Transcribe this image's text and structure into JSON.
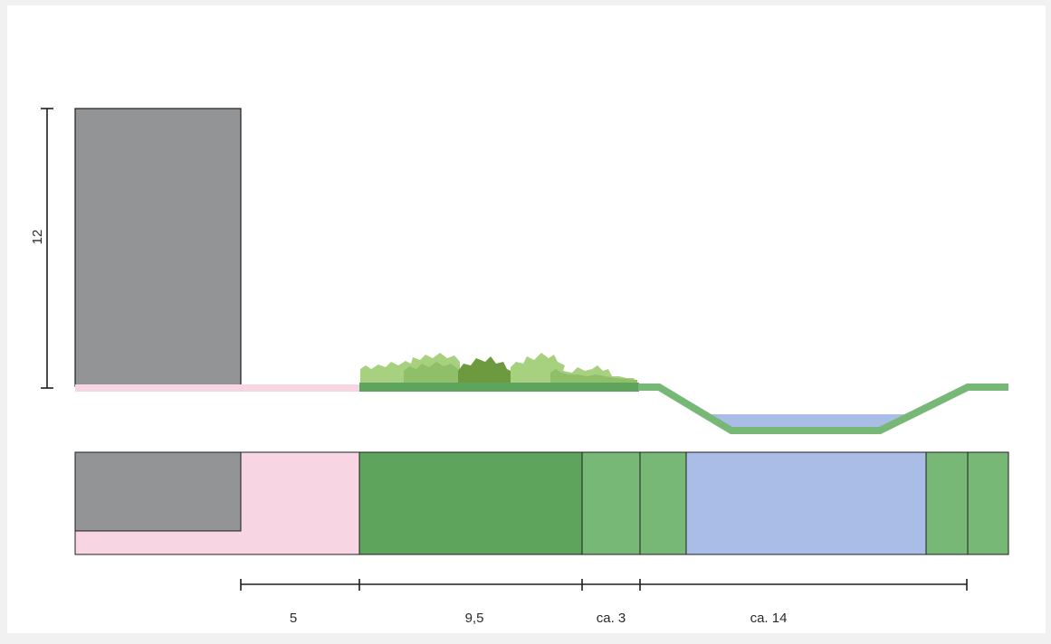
{
  "dimensions": {
    "height": "12",
    "widths": [
      "5",
      "9,5",
      "ca. 3",
      "ca. 14"
    ]
  },
  "colors": {
    "building": "#939496",
    "pavement": "#f7d5e3",
    "meadow_dark": "#5ea45c",
    "meadow_light": "#78b877",
    "water": "#a9bde6",
    "shrub_light": "#a7d07f",
    "shrub_mid": "#8fbf68",
    "shrub_dark": "#6d9a3e",
    "ink": "#1e1e1e"
  }
}
